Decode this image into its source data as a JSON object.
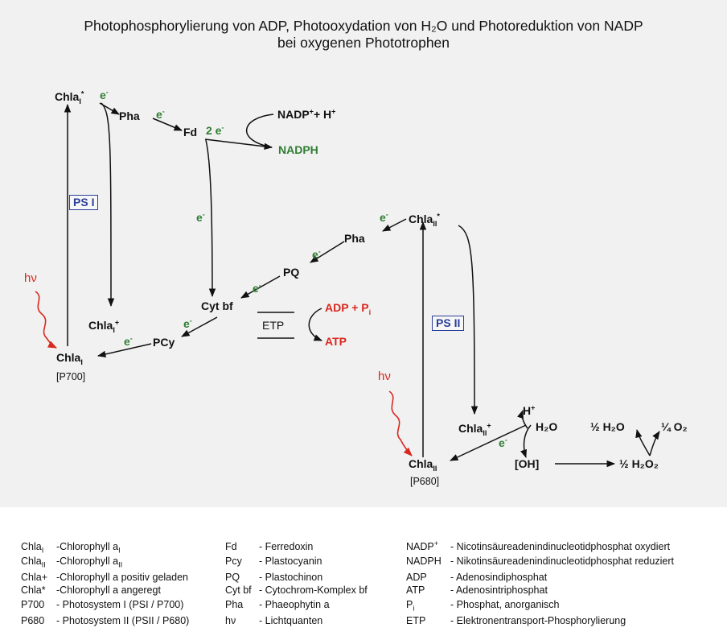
{
  "title": {
    "line1": "Photophosphorylierung von ADP, Photooxydation von H₂O und Photoreduktion von NADP",
    "line2": "bei oxygenen Phototrophen"
  },
  "diagram": {
    "ps1": {
      "box": "PS I",
      "chla_excited_main": "Chla",
      "chla_excited_sub": "I",
      "chla_excited_sup": "*",
      "chla_pos_main": "Chla",
      "chla_pos_sub": "I",
      "chla_pos_sup": "+",
      "chla_ground_main": "Chla",
      "chla_ground_sub": "I",
      "p700": "[P700]",
      "hv": "hν"
    },
    "ps2": {
      "box": "PS II",
      "chla_excited_main": "Chla",
      "chla_excited_sub": "II",
      "chla_excited_sup": "*",
      "chla_pos_main": "Chla",
      "chla_pos_sub": "II",
      "chla_pos_sup": "+",
      "chla_ground_main": "Chla",
      "chla_ground_sub": "II",
      "p680": "[P680]",
      "hv": "hν"
    },
    "carriers": {
      "pha1": "Pha",
      "fd": "Fd",
      "nadp_main": "NADP",
      "nadp_sup": "+",
      "nadp_rest": "+ H",
      "nadp_h_sup": "+",
      "nadph": "NADPH",
      "pha2": "Pha",
      "pq": "PQ",
      "cytbf": "Cyt bf",
      "pcy": "PCy",
      "adp_main": "ADP + P",
      "adp_sub": "i",
      "atp": "ATP",
      "etp": "ETP"
    },
    "electrons": {
      "e": "e",
      "sup": "-",
      "two_e": "2 e"
    },
    "water": {
      "hplus_main": "H",
      "hplus_sup": "+",
      "h2o": "H₂O",
      "oh": "[OH]",
      "half_h2o": "½ H₂O",
      "quarter_o2": "¼ O₂",
      "half_h2o2": "½ H₂O₂"
    }
  },
  "legend": {
    "col1": [
      {
        "abbr": "Chla",
        "abbr_sub": "I",
        "abbr_sup": "",
        "desc": "-Chlorophyll a",
        "desc_sub": "I"
      },
      {
        "abbr": "Chla",
        "abbr_sub": "II",
        "abbr_sup": "",
        "desc": "-Chlorophyll a",
        "desc_sub": "II"
      },
      {
        "abbr": "Chla+",
        "abbr_sub": "",
        "abbr_sup": "",
        "desc": "-Chlorophyll a positiv geladen",
        "desc_sub": ""
      },
      {
        "abbr": "Chla*",
        "abbr_sub": "",
        "abbr_sup": "",
        "desc": "-Chlorophyll a angeregt",
        "desc_sub": ""
      },
      {
        "abbr": "P700",
        "abbr_sub": "",
        "abbr_sup": "",
        "desc": "- Photosystem I (PSI / P700)",
        "desc_sub": ""
      },
      {
        "abbr": "P680",
        "abbr_sub": "",
        "abbr_sup": "",
        "desc": "- Photosystem II (PSII / P680)",
        "desc_sub": ""
      }
    ],
    "col2": [
      {
        "abbr": "Fd",
        "desc": "-    Ferredoxin"
      },
      {
        "abbr": "Pcy",
        "desc": "-    Plastocyanin"
      },
      {
        "abbr": "PQ",
        "desc": "-    Plastochinon"
      },
      {
        "abbr": "Cyt bf",
        "desc": "-    Cytochrom-Komplex bf"
      },
      {
        "abbr": "Pha",
        "desc": "-    Phaeophytin a"
      },
      {
        "abbr": "hν",
        "desc": "-    Lichtquanten"
      }
    ],
    "col3": [
      {
        "abbr": "NADP",
        "abbr_sub": "",
        "abbr_sup": "+",
        "desc": "-  Nicotinsäureadenindinucleotidphosphat oxydiert"
      },
      {
        "abbr": "NADPH",
        "abbr_sub": "",
        "abbr_sup": "",
        "desc": "-  Nikotinsäureadenindinucleotidphosphat reduziert"
      },
      {
        "abbr": "ADP",
        "abbr_sub": "",
        "abbr_sup": "",
        "desc": "-  Adenosindiphosphat"
      },
      {
        "abbr": "ATP",
        "abbr_sub": "",
        "abbr_sup": "",
        "desc": "-  Adenosintriphosphat"
      },
      {
        "abbr": "P",
        "abbr_sub": "i",
        "abbr_sup": "",
        "desc": "-  Phosphat, anorganisch"
      },
      {
        "abbr": "ETP",
        "abbr_sub": "",
        "abbr_sup": "",
        "desc": "-  Elektronentransport-Phosphorylierung"
      }
    ]
  },
  "colors": {
    "electron_green": "#2f7d32",
    "product_red": "#d8281f",
    "ps_box_blue": "#2a3f9a"
  }
}
